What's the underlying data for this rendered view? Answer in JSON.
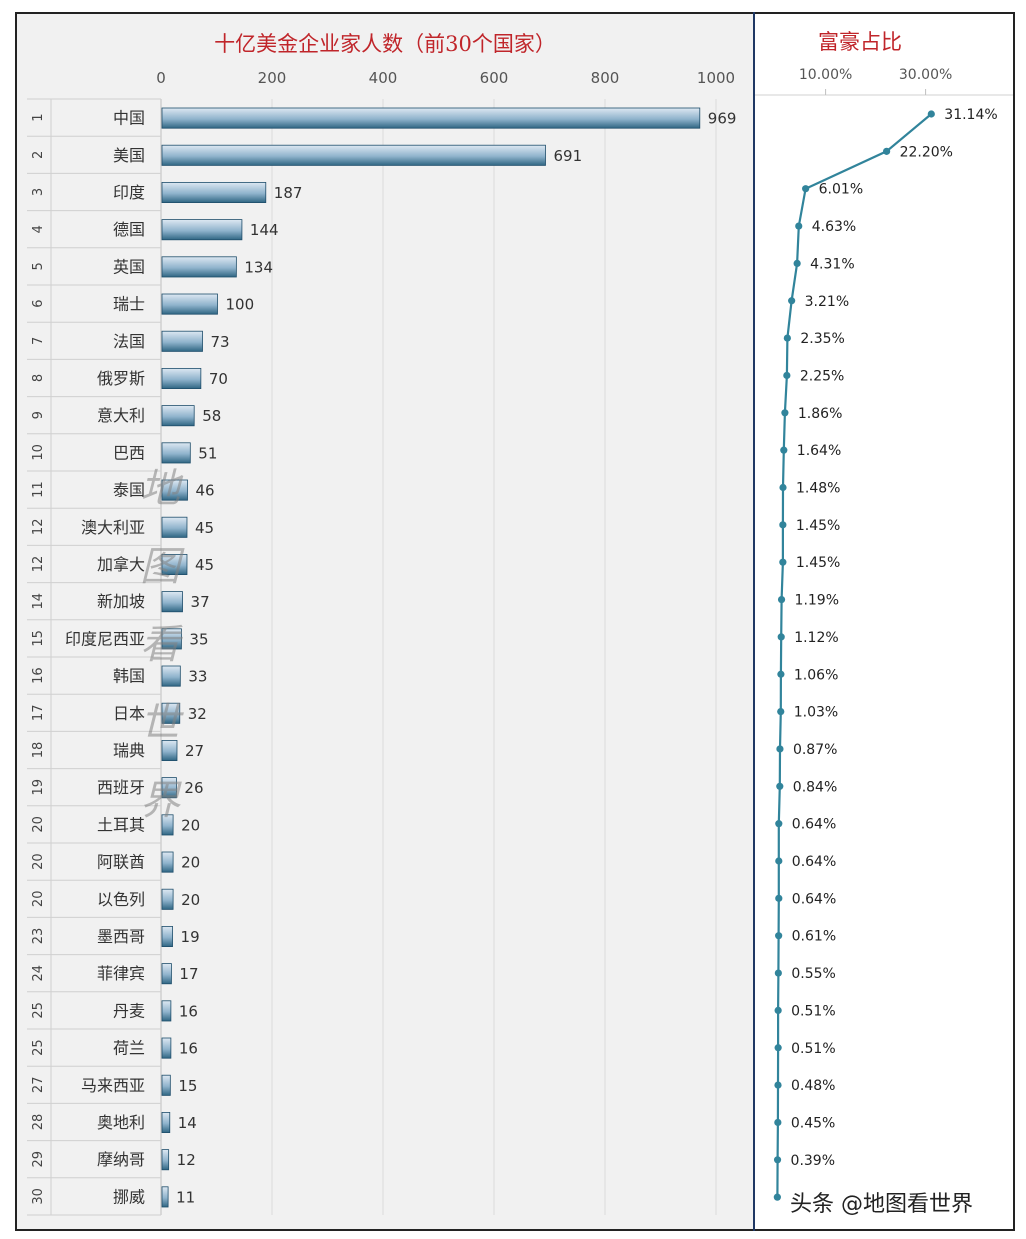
{
  "chart_data": [
    {
      "type": "bar",
      "orientation": "horizontal",
      "title": "十亿美金企业家人数（前30个国家）",
      "xlim": [
        0,
        1000
      ],
      "xticks": [
        "0",
        "200",
        "400",
        "600",
        "800",
        "1000"
      ],
      "grid": true,
      "ranks": [
        "1",
        "2",
        "3",
        "4",
        "5",
        "6",
        "7",
        "8",
        "9",
        "10",
        "11",
        "12",
        "12",
        "14",
        "15",
        "16",
        "17",
        "18",
        "19",
        "20",
        "20",
        "20",
        "23",
        "24",
        "25",
        "25",
        "27",
        "28",
        "29",
        "30"
      ],
      "categories": [
        "中国",
        "美国",
        "印度",
        "德国",
        "英国",
        "瑞士",
        "法国",
        "俄罗斯",
        "意大利",
        "巴西",
        "泰国",
        "澳大利亚",
        "加拿大",
        "新加坡",
        "印度尼西亚",
        "韩国",
        "日本",
        "瑞典",
        "西班牙",
        "土耳其",
        "阿联酋",
        "以色列",
        "墨西哥",
        "菲律宾",
        "丹麦",
        "荷兰",
        "马来西亚",
        "奥地利",
        "摩纳哥",
        "挪威"
      ],
      "values": [
        969,
        691,
        187,
        144,
        134,
        100,
        73,
        70,
        58,
        51,
        46,
        45,
        45,
        37,
        35,
        33,
        32,
        27,
        26,
        20,
        20,
        20,
        19,
        17,
        16,
        16,
        15,
        14,
        12,
        11
      ],
      "colors": {
        "bar_top": "#dde8f2",
        "bar_bottom": "#2f6683",
        "bar_edge": "#1f4e6b",
        "title": "#c0252a"
      }
    },
    {
      "type": "line",
      "title": "富豪占比",
      "xticks": [
        "10.00%",
        "30.00%"
      ],
      "values": [
        31.14,
        22.2,
        6.01,
        4.63,
        4.31,
        3.21,
        2.35,
        2.25,
        1.86,
        1.64,
        1.48,
        1.45,
        1.45,
        1.19,
        1.12,
        1.06,
        1.03,
        0.87,
        0.84,
        0.64,
        0.64,
        0.64,
        0.61,
        0.55,
        0.51,
        0.51,
        0.48,
        0.45,
        0.39,
        0.35
      ],
      "labels": [
        "31.14%",
        "22.20%",
        "6.01%",
        "4.63%",
        "4.31%",
        "3.21%",
        "2.35%",
        "2.25%",
        "1.86%",
        "1.64%",
        "1.48%",
        "1.45%",
        "1.45%",
        "1.19%",
        "1.12%",
        "1.06%",
        "1.03%",
        "0.87%",
        "0.84%",
        "0.64%",
        "0.64%",
        "0.64%",
        "0.61%",
        "0.55%",
        "0.51%",
        "0.51%",
        "0.48%",
        "0.45%",
        "0.39%",
        ""
      ],
      "colors": {
        "line": "#31849b"
      }
    }
  ],
  "watermark": "地图看世界",
  "credit": "头条 @地图看世界"
}
